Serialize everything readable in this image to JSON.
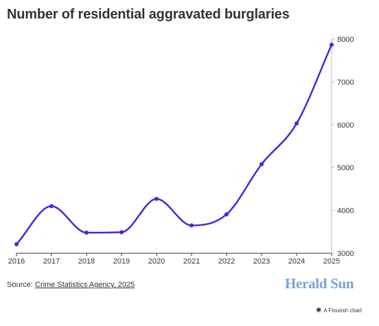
{
  "header": {
    "title": "Number of residential aggravated burglaries"
  },
  "footer": {
    "source_prefix": "Source: ",
    "source_link": "Crime Statistics Agency, 2025",
    "brand": "Herald Sun",
    "flourish_credit": "A Flourish chart"
  },
  "chart_data": {
    "type": "line",
    "title": "Number of residential aggravated burglaries",
    "xlabel": "",
    "ylabel": "",
    "categories": [
      "2016",
      "2017",
      "2018",
      "2019",
      "2020",
      "2021",
      "2022",
      "2023",
      "2024",
      "2025"
    ],
    "x": [
      2016,
      2017,
      2018,
      2019,
      2020,
      2021,
      2022,
      2023,
      2024,
      2025
    ],
    "series": [
      {
        "values": [
          3210,
          4100,
          3480,
          3490,
          4270,
          3650,
          3910,
          5080,
          6030,
          7870
        ]
      }
    ],
    "ylim": [
      3000,
      8000
    ],
    "yticks": [
      3000,
      4000,
      5000,
      6000,
      7000,
      8000
    ],
    "y_axis_position": "right",
    "grid": false,
    "line_color": "#4a25d9",
    "curve": "smooth"
  }
}
